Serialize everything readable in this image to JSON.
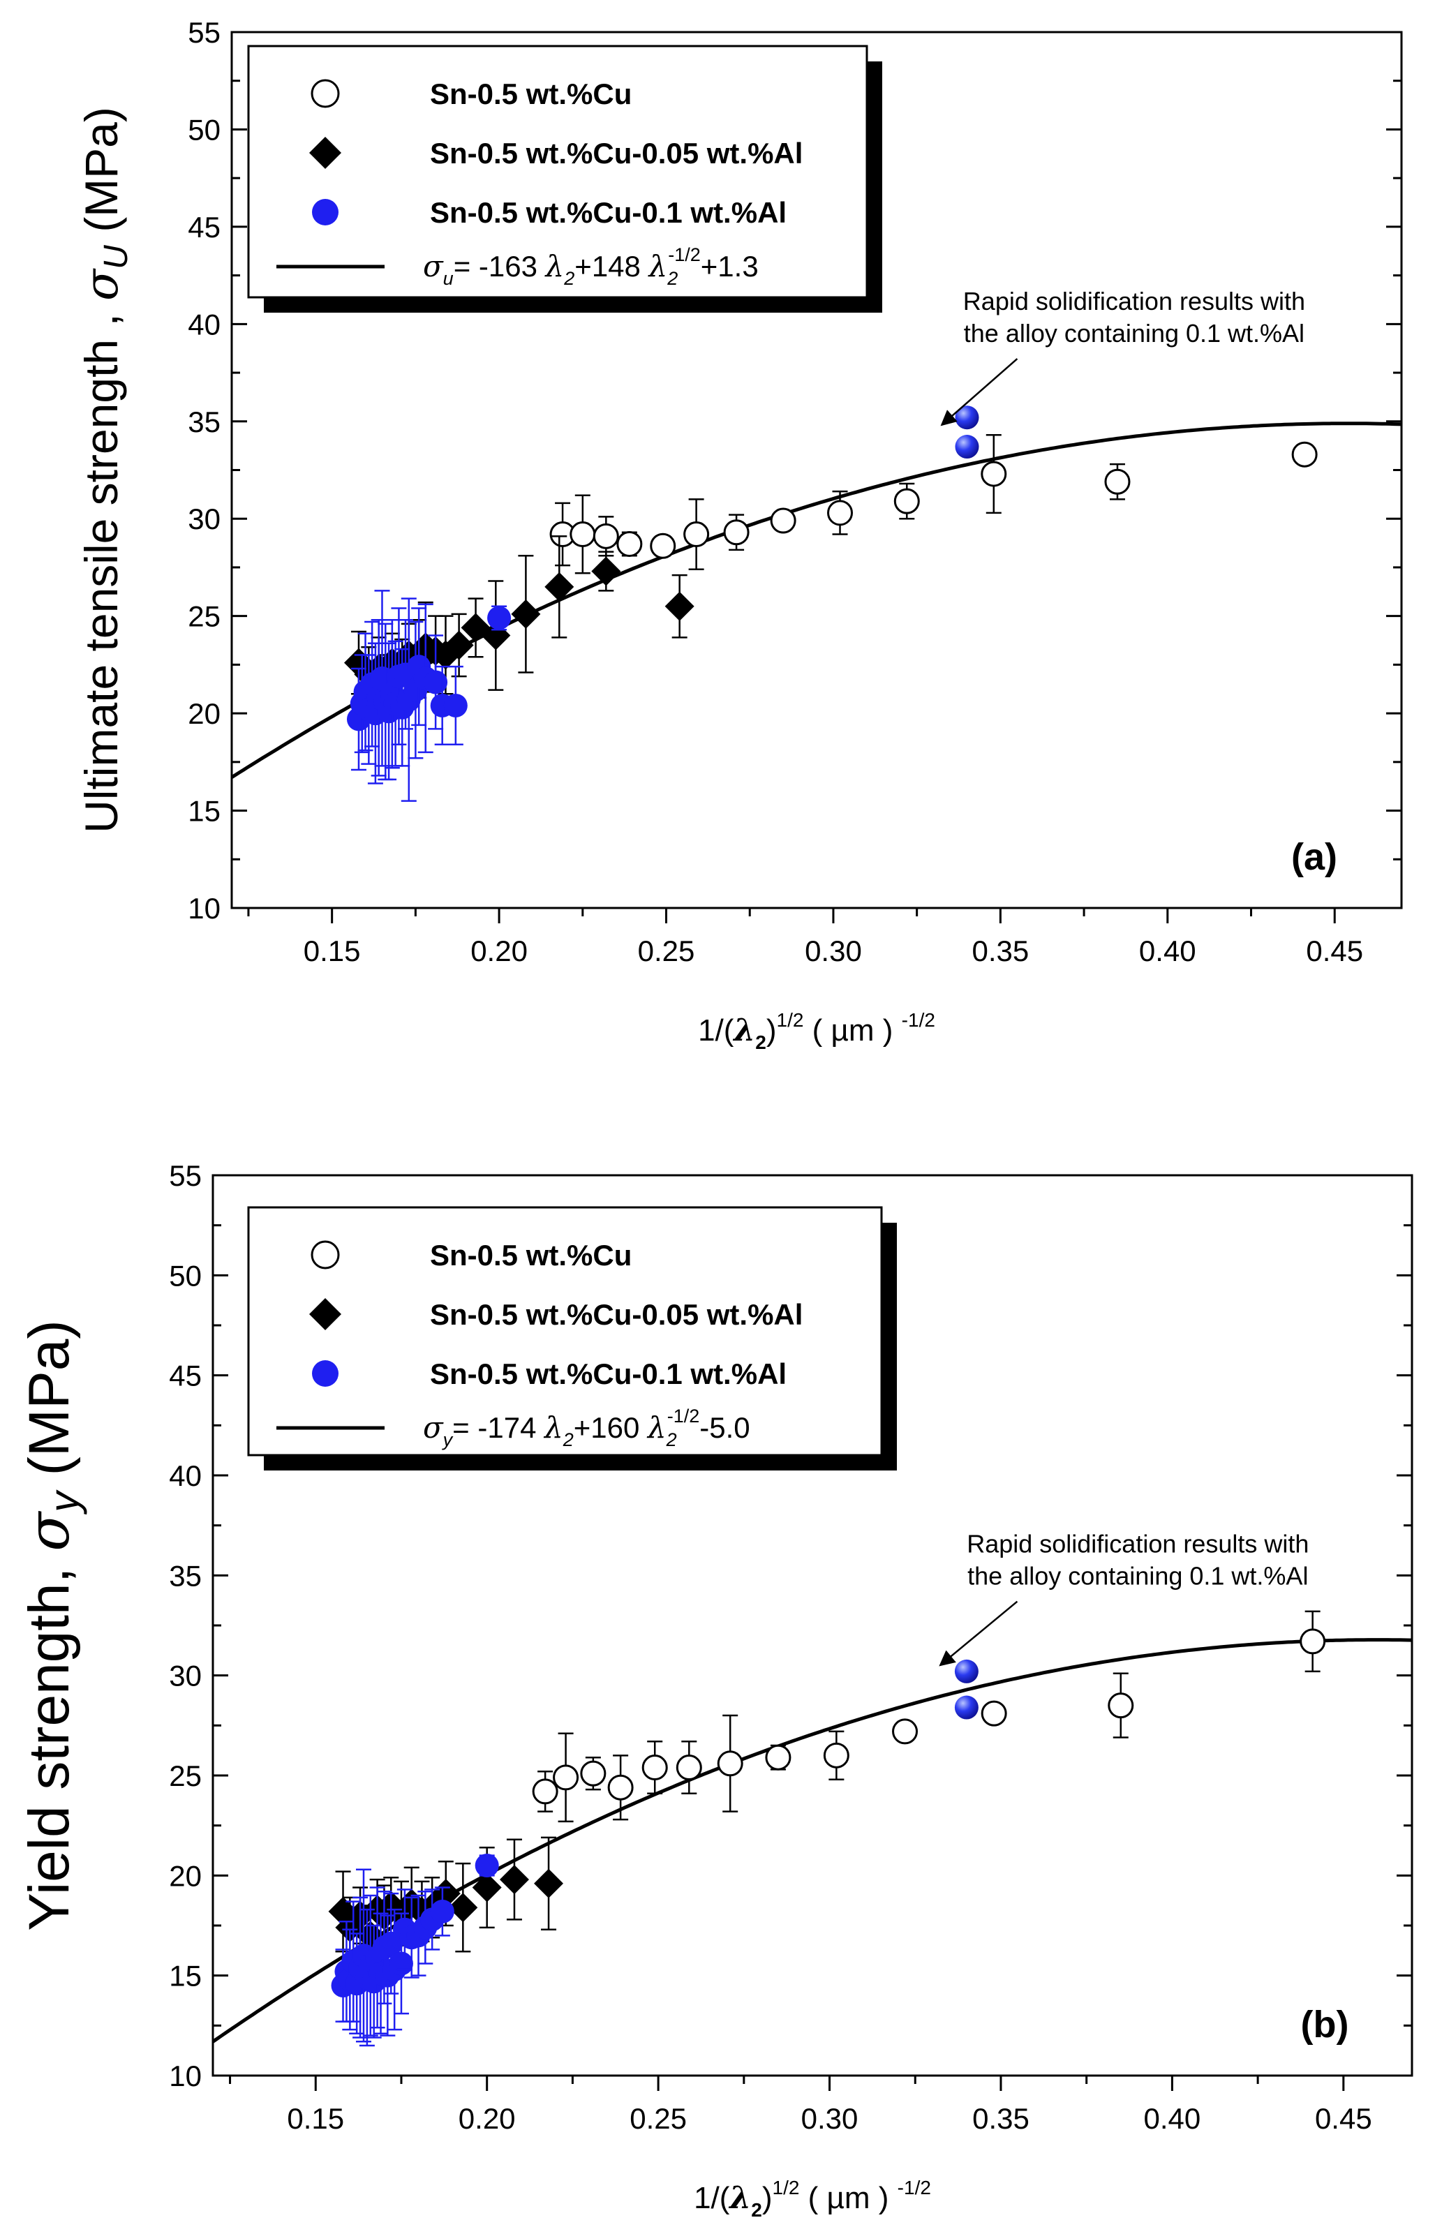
{
  "chart_data": [
    {
      "type": "scatter",
      "panel_label": "(a)",
      "xlabel": {
        "prefix": "1/(",
        "lambda": "λ",
        "sub": "2",
        "close": ")",
        "sup": "1/2",
        "units": " ( µm ) ",
        "units_sup": "-1/2"
      },
      "ylabel": {
        "text": "Ultimate tensile strength , ",
        "symbol": "σ",
        "sub": "U",
        "units": " (MPa)"
      },
      "xlim": [
        0.12,
        0.47
      ],
      "ylim": [
        10,
        55
      ],
      "xticks": [
        "0.15",
        "0.20",
        "0.25",
        "0.30",
        "0.35",
        "0.40",
        "0.45"
      ],
      "yticks": [
        "10",
        "15",
        "20",
        "25",
        "30",
        "35",
        "40",
        "45",
        "50",
        "55"
      ],
      "legend": [
        {
          "name": "Sn-0.5 wt.%Cu",
          "marker": "open-circle"
        },
        {
          "name": "Sn-0.5 wt.%Cu-0.05 wt.%Al",
          "marker": "filled-diamond"
        },
        {
          "name": "Sn-0.5 wt.%Cu-0.1 wt.%Al",
          "marker": "blue-circle"
        }
      ],
      "fit": {
        "symbol": "σ",
        "sub": "u",
        "eq_a": "=  -163 ",
        "lam_a": "λ",
        "sub_a": "2",
        "eq_b": "+148 ",
        "lam_b": "λ",
        "sub_b": "2",
        "sup_b": "-1/2",
        "eq_c": "+1.3",
        "a": -163,
        "b": 148,
        "c": 1.3,
        "range": [
          0.12,
          0.47
        ]
      },
      "annotation": {
        "line1": "Rapid solidification results with",
        "line2": "the alloy containing 0.1 wt.%Al",
        "arrow_from": [
          0.345,
          37.5
        ],
        "arrow_to": [
          0.327,
          34.6
        ]
      },
      "series": [
        {
          "name": "Sn-0.5 wt.%Cu",
          "color": "#000000",
          "points": [
            {
              "x": 0.219,
              "y": 29.2,
              "err": 1.6
            },
            {
              "x": 0.225,
              "y": 29.2,
              "err": 2.0
            },
            {
              "x": 0.232,
              "y": 29.1,
              "err": 1.0
            },
            {
              "x": 0.239,
              "y": 28.7,
              "err": 0.6
            },
            {
              "x": 0.249,
              "y": 28.6,
              "err": 0.5
            },
            {
              "x": 0.259,
              "y": 29.2,
              "err": 1.8
            },
            {
              "x": 0.271,
              "y": 29.3,
              "err": 0.9
            },
            {
              "x": 0.285,
              "y": 29.9,
              "err": 0.4
            },
            {
              "x": 0.302,
              "y": 30.3,
              "err": 1.1
            },
            {
              "x": 0.322,
              "y": 30.9,
              "err": 0.9
            },
            {
              "x": 0.348,
              "y": 32.3,
              "err": 2.0
            },
            {
              "x": 0.385,
              "y": 31.9,
              "err": 0.9
            },
            {
              "x": 0.441,
              "y": 33.3,
              "err": 0
            }
          ]
        },
        {
          "name": "Sn-0.5 wt.%Cu-0.05 wt.%Al",
          "color": "#000000",
          "points": [
            {
              "x": 0.158,
              "y": 22.6,
              "err": 1.6
            },
            {
              "x": 0.161,
              "y": 22.0,
              "err": 1.4
            },
            {
              "x": 0.164,
              "y": 22.3,
              "err": 1.6
            },
            {
              "x": 0.166,
              "y": 21.5,
              "err": 1.5
            },
            {
              "x": 0.168,
              "y": 22.6,
              "err": 1.5
            },
            {
              "x": 0.171,
              "y": 22.2,
              "err": 1.6
            },
            {
              "x": 0.173,
              "y": 23.0,
              "err": 1.6
            },
            {
              "x": 0.176,
              "y": 22.8,
              "err": 2.0
            },
            {
              "x": 0.178,
              "y": 23.4,
              "err": 2.3
            },
            {
              "x": 0.181,
              "y": 23.2,
              "err": 1.8
            },
            {
              "x": 0.184,
              "y": 23.0,
              "err": 2.0
            },
            {
              "x": 0.188,
              "y": 23.5,
              "err": 1.6
            },
            {
              "x": 0.193,
              "y": 24.4,
              "err": 1.5
            },
            {
              "x": 0.199,
              "y": 24.0,
              "err": 2.8
            },
            {
              "x": 0.208,
              "y": 25.1,
              "err": 3.0
            },
            {
              "x": 0.218,
              "y": 26.5,
              "err": 2.6
            },
            {
              "x": 0.232,
              "y": 27.3,
              "err": 1.0
            },
            {
              "x": 0.254,
              "y": 25.5,
              "err": 1.6
            }
          ]
        },
        {
          "name": "Sn-0.5 wt.%Cu-0.1 wt.%Al",
          "color": "#1f1ff0",
          "points": [
            {
              "x": 0.158,
              "y": 19.7,
              "err": 2.6
            },
            {
              "x": 0.159,
              "y": 20.5,
              "err": 2.5
            },
            {
              "x": 0.16,
              "y": 21.1,
              "err": 3.0
            },
            {
              "x": 0.161,
              "y": 20.2,
              "err": 2.8
            },
            {
              "x": 0.162,
              "y": 21.5,
              "err": 3.2
            },
            {
              "x": 0.163,
              "y": 20.0,
              "err": 3.6
            },
            {
              "x": 0.164,
              "y": 20.8,
              "err": 4.0
            },
            {
              "x": 0.165,
              "y": 21.8,
              "err": 4.5
            },
            {
              "x": 0.166,
              "y": 20.6,
              "err": 4.0
            },
            {
              "x": 0.167,
              "y": 20.1,
              "err": 3.5
            },
            {
              "x": 0.168,
              "y": 21.0,
              "err": 3.8
            },
            {
              "x": 0.169,
              "y": 20.5,
              "err": 3.2
            },
            {
              "x": 0.17,
              "y": 21.9,
              "err": 3.5
            },
            {
              "x": 0.171,
              "y": 20.3,
              "err": 3.0
            },
            {
              "x": 0.172,
              "y": 22.0,
              "err": 2.8
            },
            {
              "x": 0.173,
              "y": 20.7,
              "err": 5.2
            },
            {
              "x": 0.175,
              "y": 21.2,
              "err": 3.5
            },
            {
              "x": 0.176,
              "y": 22.4,
              "err": 3.0
            },
            {
              "x": 0.178,
              "y": 21.8,
              "err": 3.8
            },
            {
              "x": 0.181,
              "y": 21.6,
              "err": 2.4
            },
            {
              "x": 0.183,
              "y": 20.4,
              "err": 2.0
            },
            {
              "x": 0.187,
              "y": 20.4,
              "err": 2.0
            },
            {
              "x": 0.2,
              "y": 24.9,
              "err": 0.6
            },
            {
              "x": 0.34,
              "y": 35.2,
              "err": 0,
              "rapid": true
            },
            {
              "x": 0.34,
              "y": 33.7,
              "err": 0,
              "rapid": true
            }
          ]
        }
      ]
    },
    {
      "type": "scatter",
      "panel_label": "(b)",
      "xlabel": {
        "prefix": "1/(",
        "lambda": "λ",
        "sub": "2",
        "close": ")",
        "sup": "1/2",
        "units": " ( µm ) ",
        "units_sup": "-1/2"
      },
      "ylabel": {
        "text": "Yield strength, ",
        "symbol": "σ",
        "sub": "y",
        "units": " (MPa)"
      },
      "xlim": [
        0.12,
        0.47
      ],
      "ylim": [
        10,
        55
      ],
      "xticks": [
        "0.15",
        "0.20",
        "0.25",
        "0.30",
        "0.35",
        "0.40",
        "0.45"
      ],
      "yticks": [
        "10",
        "15",
        "20",
        "25",
        "30",
        "35",
        "40",
        "45",
        "50",
        "55"
      ],
      "legend": [
        {
          "name": "Sn-0.5 wt.%Cu",
          "marker": "open-circle"
        },
        {
          "name": "Sn-0.5 wt.%Cu-0.05 wt.%Al",
          "marker": "filled-diamond"
        },
        {
          "name": "Sn-0.5 wt.%Cu-0.1 wt.%Al",
          "marker": "blue-circle"
        }
      ],
      "fit": {
        "symbol": "σ",
        "sub": "y",
        "eq_a": "=  -174 ",
        "lam_a": "λ",
        "sub_a": "2",
        "eq_b": "+160 ",
        "lam_b": "λ",
        "sub_b": "2",
        "sup_b": "-1/2",
        "eq_c": "-5.0",
        "a": -174,
        "b": 160,
        "c": -5.0,
        "range": [
          0.12,
          0.47
        ]
      },
      "annotation": {
        "line1": "Rapid solidification results with",
        "line2": "the alloy containing 0.1 wt.%Al",
        "arrow_from": [
          0.345,
          33.0
        ],
        "arrow_to": [
          0.327,
          30.3
        ]
      },
      "series": [
        {
          "name": "Sn-0.5 wt.%Cu",
          "color": "#000000",
          "points": [
            {
              "x": 0.217,
              "y": 24.2,
              "err": 1.0
            },
            {
              "x": 0.223,
              "y": 24.9,
              "err": 2.2
            },
            {
              "x": 0.231,
              "y": 25.1,
              "err": 0.8
            },
            {
              "x": 0.239,
              "y": 24.4,
              "err": 1.6
            },
            {
              "x": 0.249,
              "y": 25.4,
              "err": 1.3
            },
            {
              "x": 0.259,
              "y": 25.4,
              "err": 1.3
            },
            {
              "x": 0.271,
              "y": 25.6,
              "err": 2.4
            },
            {
              "x": 0.285,
              "y": 25.9,
              "err": 0.6
            },
            {
              "x": 0.302,
              "y": 26.0,
              "err": 1.2
            },
            {
              "x": 0.322,
              "y": 27.2,
              "err": 0
            },
            {
              "x": 0.348,
              "y": 28.1,
              "err": 0
            },
            {
              "x": 0.385,
              "y": 28.5,
              "err": 1.6
            },
            {
              "x": 0.441,
              "y": 31.7,
              "err": 1.5
            }
          ]
        },
        {
          "name": "Sn-0.5 wt.%Cu-0.05 wt.%Al",
          "color": "#000000",
          "points": [
            {
              "x": 0.158,
              "y": 18.2,
              "err": 2.0
            },
            {
              "x": 0.16,
              "y": 17.4,
              "err": 1.5
            },
            {
              "x": 0.163,
              "y": 18.0,
              "err": 1.4
            },
            {
              "x": 0.166,
              "y": 17.0,
              "err": 1.5
            },
            {
              "x": 0.168,
              "y": 18.3,
              "err": 1.5
            },
            {
              "x": 0.17,
              "y": 18.0,
              "err": 1.5
            },
            {
              "x": 0.172,
              "y": 18.5,
              "err": 1.4
            },
            {
              "x": 0.175,
              "y": 18.1,
              "err": 1.6
            },
            {
              "x": 0.178,
              "y": 18.6,
              "err": 1.8
            },
            {
              "x": 0.181,
              "y": 18.2,
              "err": 1.5
            },
            {
              "x": 0.184,
              "y": 18.4,
              "err": 1.5
            },
            {
              "x": 0.188,
              "y": 19.1,
              "err": 1.6
            },
            {
              "x": 0.193,
              "y": 18.4,
              "err": 2.2
            },
            {
              "x": 0.2,
              "y": 19.4,
              "err": 2.0
            },
            {
              "x": 0.208,
              "y": 19.8,
              "err": 2.0
            },
            {
              "x": 0.218,
              "y": 19.6,
              "err": 2.3
            }
          ]
        },
        {
          "name": "Sn-0.5 wt.%Cu-0.1 wt.%Al",
          "color": "#1f1ff0",
          "points": [
            {
              "x": 0.158,
              "y": 14.5,
              "err": 1.8
            },
            {
              "x": 0.159,
              "y": 15.2,
              "err": 2.5
            },
            {
              "x": 0.16,
              "y": 14.8,
              "err": 2.5
            },
            {
              "x": 0.161,
              "y": 15.7,
              "err": 3.0
            },
            {
              "x": 0.162,
              "y": 14.6,
              "err": 2.5
            },
            {
              "x": 0.163,
              "y": 15.4,
              "err": 3.5
            },
            {
              "x": 0.164,
              "y": 16.0,
              "err": 4.3
            },
            {
              "x": 0.165,
              "y": 14.9,
              "err": 3.4
            },
            {
              "x": 0.166,
              "y": 15.5,
              "err": 3.5
            },
            {
              "x": 0.167,
              "y": 14.7,
              "err": 2.8
            },
            {
              "x": 0.168,
              "y": 15.9,
              "err": 3.5
            },
            {
              "x": 0.169,
              "y": 15.1,
              "err": 3.0
            },
            {
              "x": 0.17,
              "y": 16.4,
              "err": 2.8
            },
            {
              "x": 0.171,
              "y": 15.0,
              "err": 3.0
            },
            {
              "x": 0.172,
              "y": 16.6,
              "err": 2.5
            },
            {
              "x": 0.173,
              "y": 15.3,
              "err": 3.0
            },
            {
              "x": 0.175,
              "y": 15.6,
              "err": 2.5
            },
            {
              "x": 0.176,
              "y": 17.3,
              "err": 2.0
            },
            {
              "x": 0.178,
              "y": 16.9,
              "err": 2.0
            },
            {
              "x": 0.18,
              "y": 17.0,
              "err": 2.0
            },
            {
              "x": 0.182,
              "y": 17.4,
              "err": 1.8
            },
            {
              "x": 0.184,
              "y": 17.8,
              "err": 1.5
            },
            {
              "x": 0.187,
              "y": 18.2,
              "err": 1.2
            },
            {
              "x": 0.2,
              "y": 20.5,
              "err": 0.5
            },
            {
              "x": 0.34,
              "y": 30.2,
              "err": 0,
              "rapid": true
            },
            {
              "x": 0.34,
              "y": 28.4,
              "err": 0,
              "rapid": true
            }
          ]
        }
      ]
    }
  ]
}
